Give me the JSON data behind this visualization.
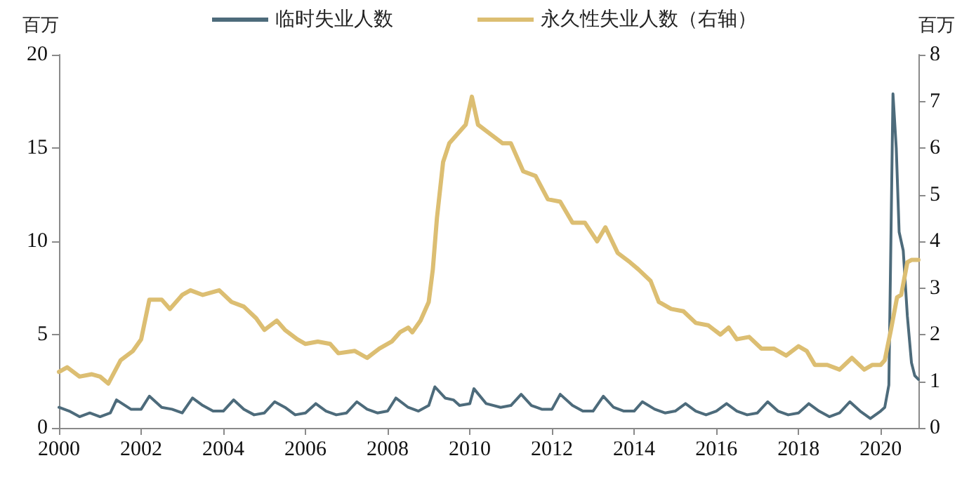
{
  "chart_data": {
    "type": "line",
    "ylabel": "百万",
    "y2label": "百万",
    "legend": "top",
    "grid": false,
    "marker": "none",
    "line_style": "solid",
    "xlim": [
      2000,
      2020.92
    ],
    "xticks": [
      2000,
      2002,
      2004,
      2006,
      2008,
      2010,
      2012,
      2014,
      2016,
      2018,
      2020
    ],
    "ylim": [
      0,
      20
    ],
    "yticks": [
      0,
      5,
      10,
      15,
      20
    ],
    "y2lim": [
      0,
      8
    ],
    "y2ticks": [
      0,
      1,
      2,
      3,
      4,
      5,
      6,
      7,
      8
    ],
    "series": [
      {
        "name": "临时失业人数",
        "color": "#4d6b7b",
        "x": [
          2000,
          2000.25,
          2000.5,
          2000.75,
          2001,
          2001.25,
          2001.4,
          2001.75,
          2002,
          2002.2,
          2002.5,
          2002.75,
          2003,
          2003.25,
          2003.5,
          2003.75,
          2004,
          2004.25,
          2004.5,
          2004.75,
          2005,
          2005.25,
          2005.5,
          2005.75,
          2006,
          2006.25,
          2006.5,
          2006.75,
          2007,
          2007.25,
          2007.5,
          2007.75,
          2008,
          2008.2,
          2008.5,
          2008.75,
          2009,
          2009.15,
          2009.4,
          2009.6,
          2009.75,
          2010,
          2010.1,
          2010.4,
          2010.75,
          2011,
          2011.25,
          2011.5,
          2011.75,
          2012,
          2012.2,
          2012.5,
          2012.75,
          2013,
          2013.25,
          2013.5,
          2013.75,
          2014,
          2014.2,
          2014.5,
          2014.75,
          2015,
          2015.25,
          2015.5,
          2015.75,
          2016,
          2016.25,
          2016.5,
          2016.75,
          2017,
          2017.25,
          2017.5,
          2017.75,
          2018,
          2018.25,
          2018.5,
          2018.75,
          2019,
          2019.25,
          2019.5,
          2019.75,
          2020,
          2020.1,
          2020.2,
          2020.3,
          2020.38,
          2020.45,
          2020.55,
          2020.65,
          2020.75,
          2020.83,
          2020.92
        ],
        "values": [
          1.1,
          0.9,
          0.6,
          0.8,
          0.6,
          0.8,
          1.5,
          1.0,
          1.0,
          1.7,
          1.1,
          1.0,
          0.8,
          1.6,
          1.2,
          0.9,
          0.9,
          1.5,
          1.0,
          0.7,
          0.8,
          1.4,
          1.1,
          0.7,
          0.8,
          1.3,
          0.9,
          0.7,
          0.8,
          1.4,
          1.0,
          0.8,
          0.9,
          1.6,
          1.1,
          0.9,
          1.2,
          2.2,
          1.6,
          1.5,
          1.2,
          1.3,
          2.1,
          1.3,
          1.1,
          1.2,
          1.8,
          1.2,
          1.0,
          1.0,
          1.8,
          1.2,
          0.9,
          0.9,
          1.7,
          1.1,
          0.9,
          0.9,
          1.4,
          1.0,
          0.8,
          0.9,
          1.3,
          0.9,
          0.7,
          0.9,
          1.3,
          0.9,
          0.7,
          0.8,
          1.4,
          0.9,
          0.7,
          0.8,
          1.3,
          0.9,
          0.6,
          0.8,
          1.4,
          0.9,
          0.5,
          0.9,
          1.1,
          2.3,
          17.9,
          15,
          10.5,
          9.5,
          6,
          3.5,
          2.8,
          2.6
        ]
      },
      {
        "name": "永久性失业人数（右轴）",
        "color": "#dcbe72",
        "axis": "y2",
        "x": [
          2000,
          2000.2,
          2000.5,
          2000.8,
          2001,
          2001.2,
          2001.5,
          2001.8,
          2002,
          2002.2,
          2002.5,
          2002.7,
          2003,
          2003.2,
          2003.5,
          2003.9,
          2004.2,
          2004.5,
          2004.8,
          2005,
          2005.3,
          2005.5,
          2005.8,
          2006,
          2006.3,
          2006.6,
          2006.8,
          2007.2,
          2007.5,
          2007.8,
          2008.1,
          2008.3,
          2008.5,
          2008.6,
          2008.8,
          2009,
          2009.1,
          2009.2,
          2009.35,
          2009.5,
          2009.7,
          2009.9,
          2010.05,
          2010.2,
          2010.5,
          2010.8,
          2011,
          2011.3,
          2011.6,
          2011.9,
          2012.2,
          2012.5,
          2012.8,
          2013.1,
          2013.3,
          2013.6,
          2013.9,
          2014.1,
          2014.4,
          2014.6,
          2014.9,
          2015.2,
          2015.5,
          2015.8,
          2016.1,
          2016.3,
          2016.5,
          2016.8,
          2017.1,
          2017.4,
          2017.7,
          2018,
          2018.2,
          2018.4,
          2018.7,
          2019,
          2019.3,
          2019.6,
          2019.8,
          2020,
          2020.1,
          2020.25,
          2020.4,
          2020.5,
          2020.65,
          2020.75,
          2020.92
        ],
        "values": [
          1.2,
          1.3,
          1.1,
          1.15,
          1.1,
          0.95,
          1.45,
          1.65,
          1.9,
          2.75,
          2.75,
          2.55,
          2.85,
          2.95,
          2.85,
          2.95,
          2.7,
          2.6,
          2.35,
          2.1,
          2.3,
          2.1,
          1.9,
          1.8,
          1.85,
          1.8,
          1.6,
          1.65,
          1.5,
          1.7,
          1.85,
          2.05,
          2.15,
          2.05,
          2.3,
          2.7,
          3.4,
          4.5,
          5.7,
          6.1,
          6.3,
          6.5,
          7.1,
          6.5,
          6.3,
          6.1,
          6.1,
          5.5,
          5.4,
          4.9,
          4.85,
          4.4,
          4.4,
          4.0,
          4.3,
          3.75,
          3.55,
          3.4,
          3.15,
          2.7,
          2.55,
          2.5,
          2.25,
          2.2,
          2.0,
          2.15,
          1.9,
          1.95,
          1.7,
          1.7,
          1.55,
          1.75,
          1.65,
          1.35,
          1.35,
          1.25,
          1.5,
          1.25,
          1.35,
          1.35,
          1.45,
          2.1,
          2.8,
          2.85,
          3.55,
          3.6,
          3.6
        ]
      }
    ]
  }
}
